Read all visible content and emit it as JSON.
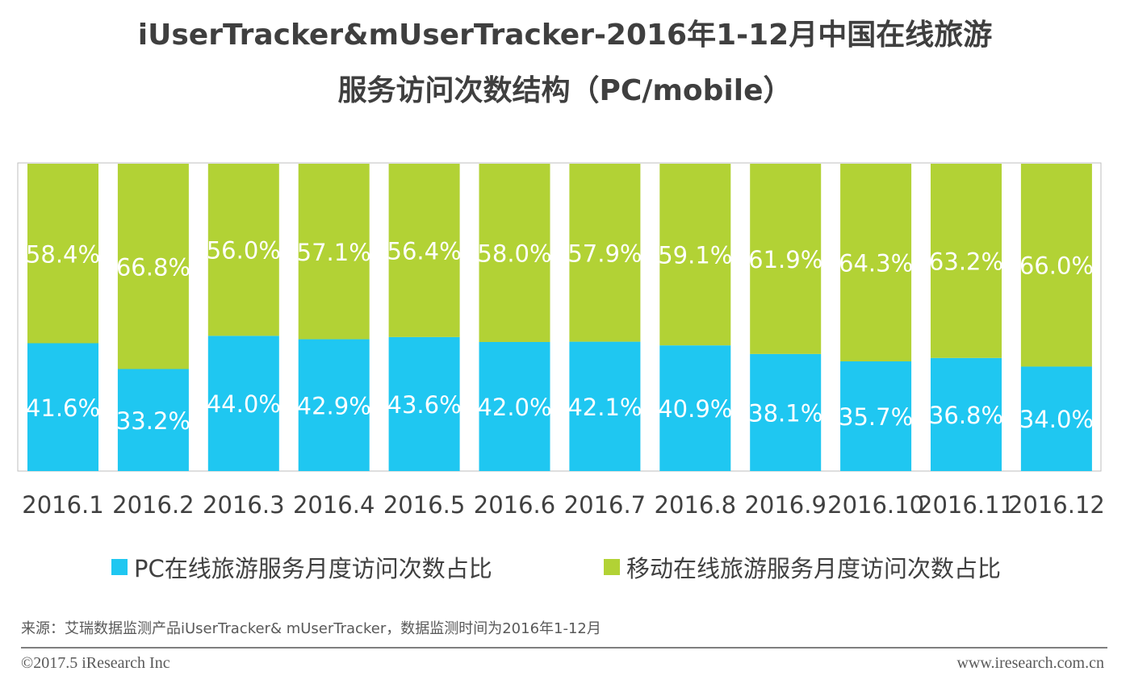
{
  "chart_data": {
    "type": "bar",
    "stacked": true,
    "title": "iUserTracker&mUserTracker-2016年1-12月中国在线旅游服务访问次数结构（PC/mobile）",
    "title_lines": [
      "iUserTracker&mUserTracker-2016年1-12月中国在线旅游",
      "服务访问次数结构（PC/mobile）"
    ],
    "categories": [
      "2016.1",
      "2016.2",
      "2016.3",
      "2016.4",
      "2016.5",
      "2016.6",
      "2016.7",
      "2016.8",
      "2016.9",
      "2016.10",
      "2016.11",
      "2016.12"
    ],
    "series": [
      {
        "name": "PC在线旅游服务月度访问次数占比",
        "color": "#1fc7f1",
        "values": [
          41.6,
          33.2,
          44.0,
          42.9,
          43.6,
          42.0,
          42.1,
          40.9,
          38.1,
          35.7,
          36.8,
          34.0
        ],
        "labels": [
          "41.6%",
          "33.2%",
          "44.0%",
          "42.9%",
          "43.6%",
          "42.0%",
          "42.1%",
          "40.9%",
          "38.1%",
          "35.7%",
          "36.8%",
          "34.0%"
        ]
      },
      {
        "name": "移动在线旅游服务月度访问次数占比",
        "color": "#b2d235",
        "values": [
          58.4,
          66.8,
          56.0,
          57.1,
          56.4,
          58.0,
          57.9,
          59.1,
          61.9,
          64.3,
          63.2,
          66.0
        ],
        "labels": [
          "58.4%",
          "66.8%",
          "56.0%",
          "57.1%",
          "56.4%",
          "58.0%",
          "57.9%",
          "59.1%",
          "61.9%",
          "64.3%",
          "63.2%",
          "66.0%"
        ]
      }
    ],
    "ylim": [
      0,
      100
    ],
    "unit": "%",
    "grid": false,
    "legend_position": "bottom",
    "xlabel": "",
    "ylabel": ""
  },
  "source_note": "来源：艾瑞数据监测产品iUserTracker& mUserTracker，数据监测时间为2016年1-12月",
  "footer": {
    "copyright": "©2017.5 iResearch Inc",
    "website": "www.iresearch.com.cn"
  }
}
